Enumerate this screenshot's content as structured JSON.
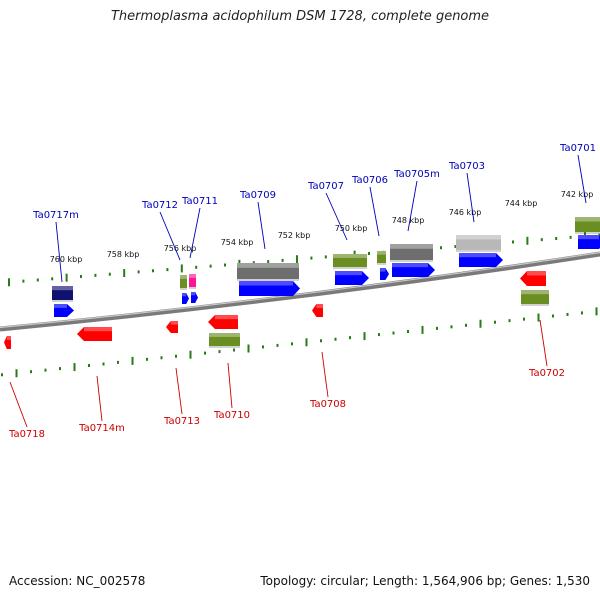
{
  "title": "Thermoplasma acidophilum DSM 1728, complete genome",
  "footer": {
    "accession": "Accession: NC_002578",
    "stats": "Topology: circular; Length: 1,564,906 bp; Genes: 1,530"
  },
  "colors": {
    "forward_label": "#0000bb",
    "reverse_label": "#cc0000",
    "tick": "#2a7a1a",
    "backbone": "#7a7a7a",
    "cds": "#0000ff",
    "reverse_cds": "#ff0000",
    "olive": "#6b8e23",
    "gray": "#6e6e6e",
    "lightgray": "#b8b8b8",
    "navy": "#101070",
    "magenta": "#ff1493"
  },
  "kbp_labels": [
    "760 kbp",
    "758 kbp",
    "756 kbp",
    "754 kbp",
    "752 kbp",
    "750 kbp",
    "748 kbp",
    "746 kbp",
    "744 kbp",
    "742 kbp"
  ],
  "forward_genes": [
    "Ta0717m",
    "Ta0712",
    "Ta0711",
    "Ta0709",
    "Ta0707",
    "Ta0706",
    "Ta0705m",
    "Ta0703",
    "Ta0701"
  ],
  "reverse_genes": [
    "Ta0718",
    "Ta0714m",
    "Ta0713",
    "Ta0710",
    "Ta0708",
    "Ta0702"
  ]
}
